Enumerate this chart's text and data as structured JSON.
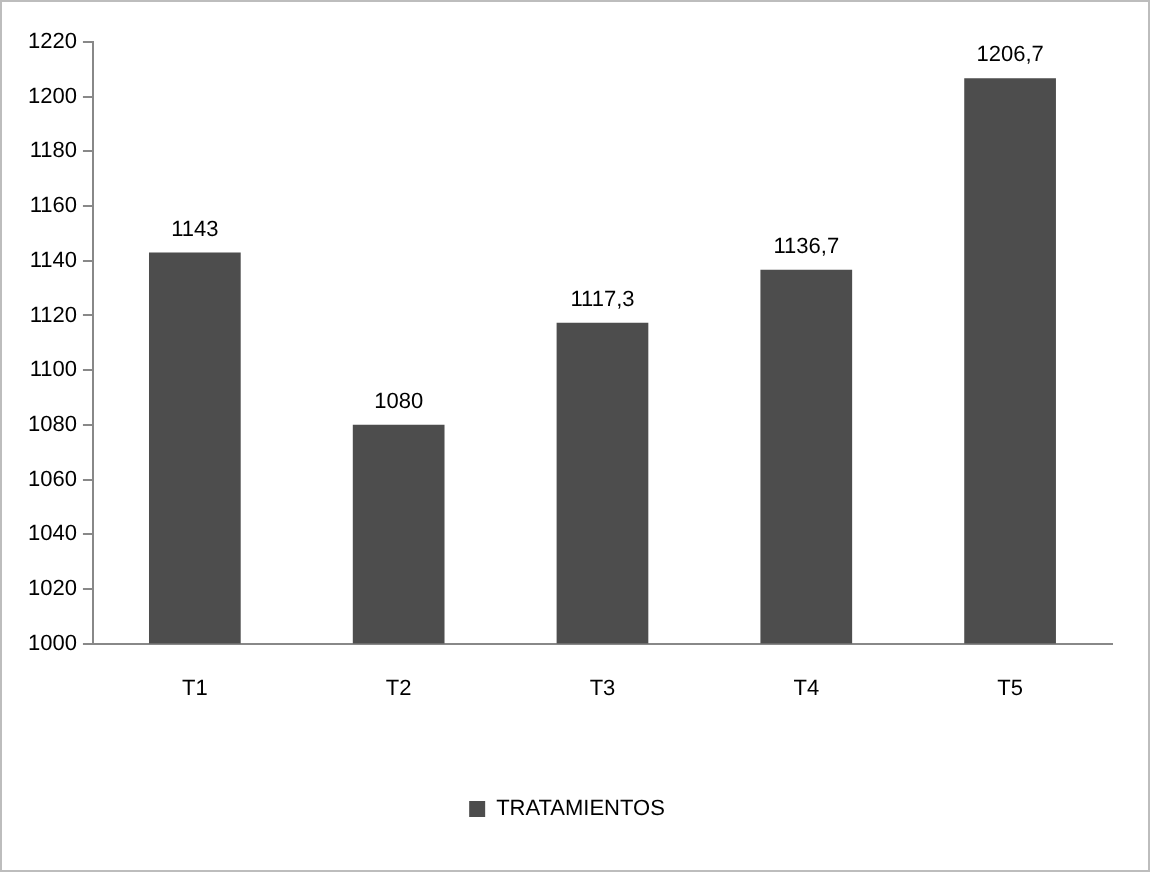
{
  "chart_data": {
    "type": "bar",
    "categories": [
      "T1",
      "T2",
      "T3",
      "T4",
      "T5"
    ],
    "series": [
      {
        "name": "TRATAMIENTOS",
        "color": "#4d4d4d",
        "values": [
          1143,
          1080,
          1117.3,
          1136.7,
          1206.7
        ],
        "value_labels": [
          "1143",
          "1080",
          "1117,3",
          "1136,7",
          "1206,7"
        ]
      }
    ],
    "ylim": [
      1000,
      1220
    ],
    "yticks": [
      1000,
      1020,
      1040,
      1060,
      1080,
      1100,
      1120,
      1140,
      1160,
      1180,
      1200,
      1220
    ],
    "grid": false,
    "legend": "bottom"
  }
}
